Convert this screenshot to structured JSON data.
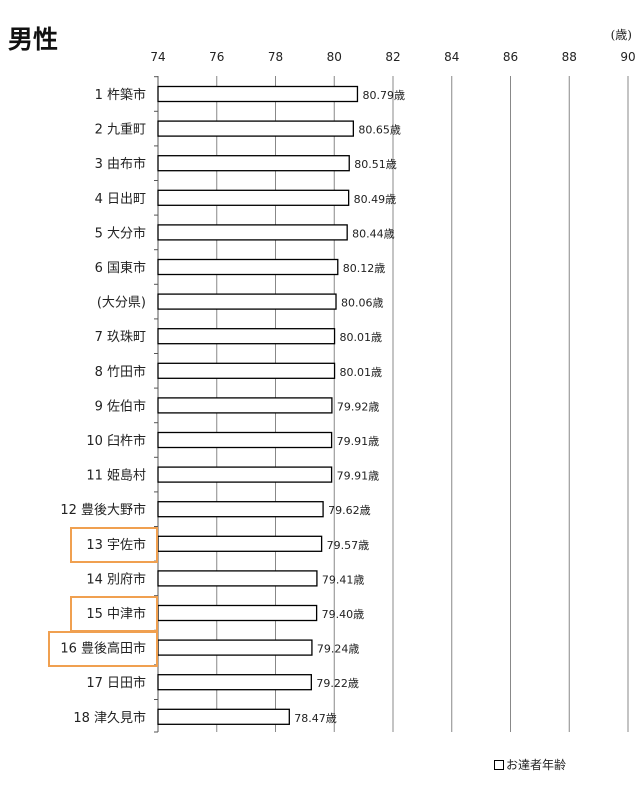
{
  "header": {
    "title": "男性",
    "unit": "(歳)"
  },
  "legend": {
    "label": "お達者年齢"
  },
  "highlighted_categories": [
    "13 宇佐市",
    "15 中津市",
    "16 豊後高田市"
  ],
  "chart_data": {
    "type": "bar",
    "orientation": "horizontal",
    "title": "男性",
    "unit": "(歳)",
    "value_suffix": "歳",
    "xlim": [
      74,
      90
    ],
    "xticks": [
      74,
      76,
      78,
      80,
      82,
      84,
      86,
      88,
      90
    ],
    "grid": true,
    "legend_position": "bottom-right",
    "categories": [
      "1 杵築市",
      "2 九重町",
      "3 由布市",
      "4 日出町",
      "5 大分市",
      "6 国東市",
      "(大分県)",
      "7 玖珠町",
      "8 竹田市",
      "9 佐伯市",
      "10 臼杵市",
      "11 姫島村",
      "12 豊後大野市",
      "13 宇佐市",
      "14 別府市",
      "15 中津市",
      "16 豊後高田市",
      "17 日田市",
      "18 津久見市"
    ],
    "series": [
      {
        "name": "お達者年齢",
        "values": [
          80.79,
          80.65,
          80.51,
          80.49,
          80.44,
          80.12,
          80.06,
          80.01,
          80.01,
          79.92,
          79.91,
          79.91,
          79.62,
          79.57,
          79.41,
          79.4,
          79.24,
          79.22,
          78.47
        ]
      }
    ]
  }
}
